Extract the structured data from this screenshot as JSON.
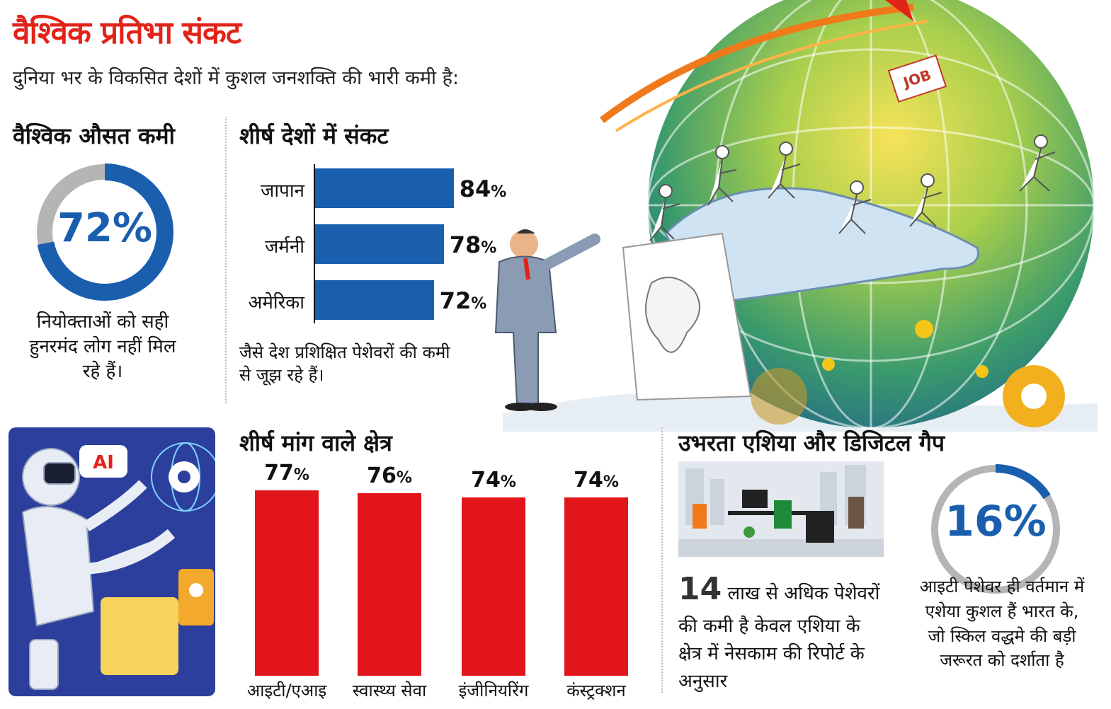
{
  "title": "वैश्विक प्रतिभा संकट",
  "subtitle": "दुनिया भर के विकसित देशों में कुशल जनशक्ति की भारी कमी है:",
  "global_avg": {
    "heading": "वैश्विक औसत कमी",
    "value_label": "72%",
    "value": 72,
    "caption_lines": [
      "नियोक्ताओं को सही",
      "हुनरमंद लोग नहीं मिल",
      "रहे हैं।"
    ]
  },
  "top_countries": {
    "heading": "शीर्ष देशों में संकट",
    "caption_lines": [
      "जैसे देश प्रशिक्षित पेशेवरों की कमी",
      "से जूझ रहे हैं।"
    ]
  },
  "demand": {
    "heading": "शीर्ष मांग वाले क्षेत्र"
  },
  "asia": {
    "heading": "उभरता एशिया और डिजिटल गैप",
    "stat_number": "14",
    "stat_lines": [
      "लाख से अधिक पेशेवरों",
      "की कमी है केवल एशिया के",
      "क्षेत्र में नेसकाम की रिपोर्ट के",
      "अनुसार"
    ],
    "it_value_label": "16%",
    "it_value": 16,
    "it_caption_lines": [
      "आइटी पेशेवर ही वर्तमान में",
      "एशेया कुशल हैं भारत के,",
      "जो स्किल वद्धमे की बड़ी",
      "जरूरत को दर्शाता है"
    ]
  },
  "illustration": {
    "job_tag": "JOB",
    "ai_tag": "AI"
  },
  "colors": {
    "accent_red": "#e2231a",
    "bar_blue": "#1a5fae",
    "bar_red": "#e2151a",
    "ring_gray": "#b5b5b5"
  },
  "chart_data": [
    {
      "type": "pie",
      "title": "वैश्विक औसत कमी",
      "values": [
        72,
        28
      ],
      "categories": [
        "",
        ""
      ]
    },
    {
      "type": "bar",
      "orientation": "horizontal",
      "title": "शीर्ष देशों में संकट",
      "categories": [
        "जापान",
        "जर्मनी",
        "अमेरिका"
      ],
      "values": [
        84,
        78,
        72
      ],
      "value_labels": [
        "84",
        "78",
        "72"
      ],
      "unit": "%"
    },
    {
      "type": "bar",
      "title": "शीर्ष मांग वाले क्षेत्र",
      "categories": [
        "आइटी/एआइ",
        "स्वास्थ्य सेवा",
        "इंजीनियरिंग",
        "कंस्ट्रक्शन"
      ],
      "values": [
        77,
        76,
        74,
        74
      ],
      "value_labels": [
        "77",
        "76",
        "74",
        "74"
      ],
      "unit": "%"
    },
    {
      "type": "pie",
      "title": "",
      "values": [
        16,
        84
      ],
      "categories": [
        "",
        ""
      ]
    }
  ]
}
